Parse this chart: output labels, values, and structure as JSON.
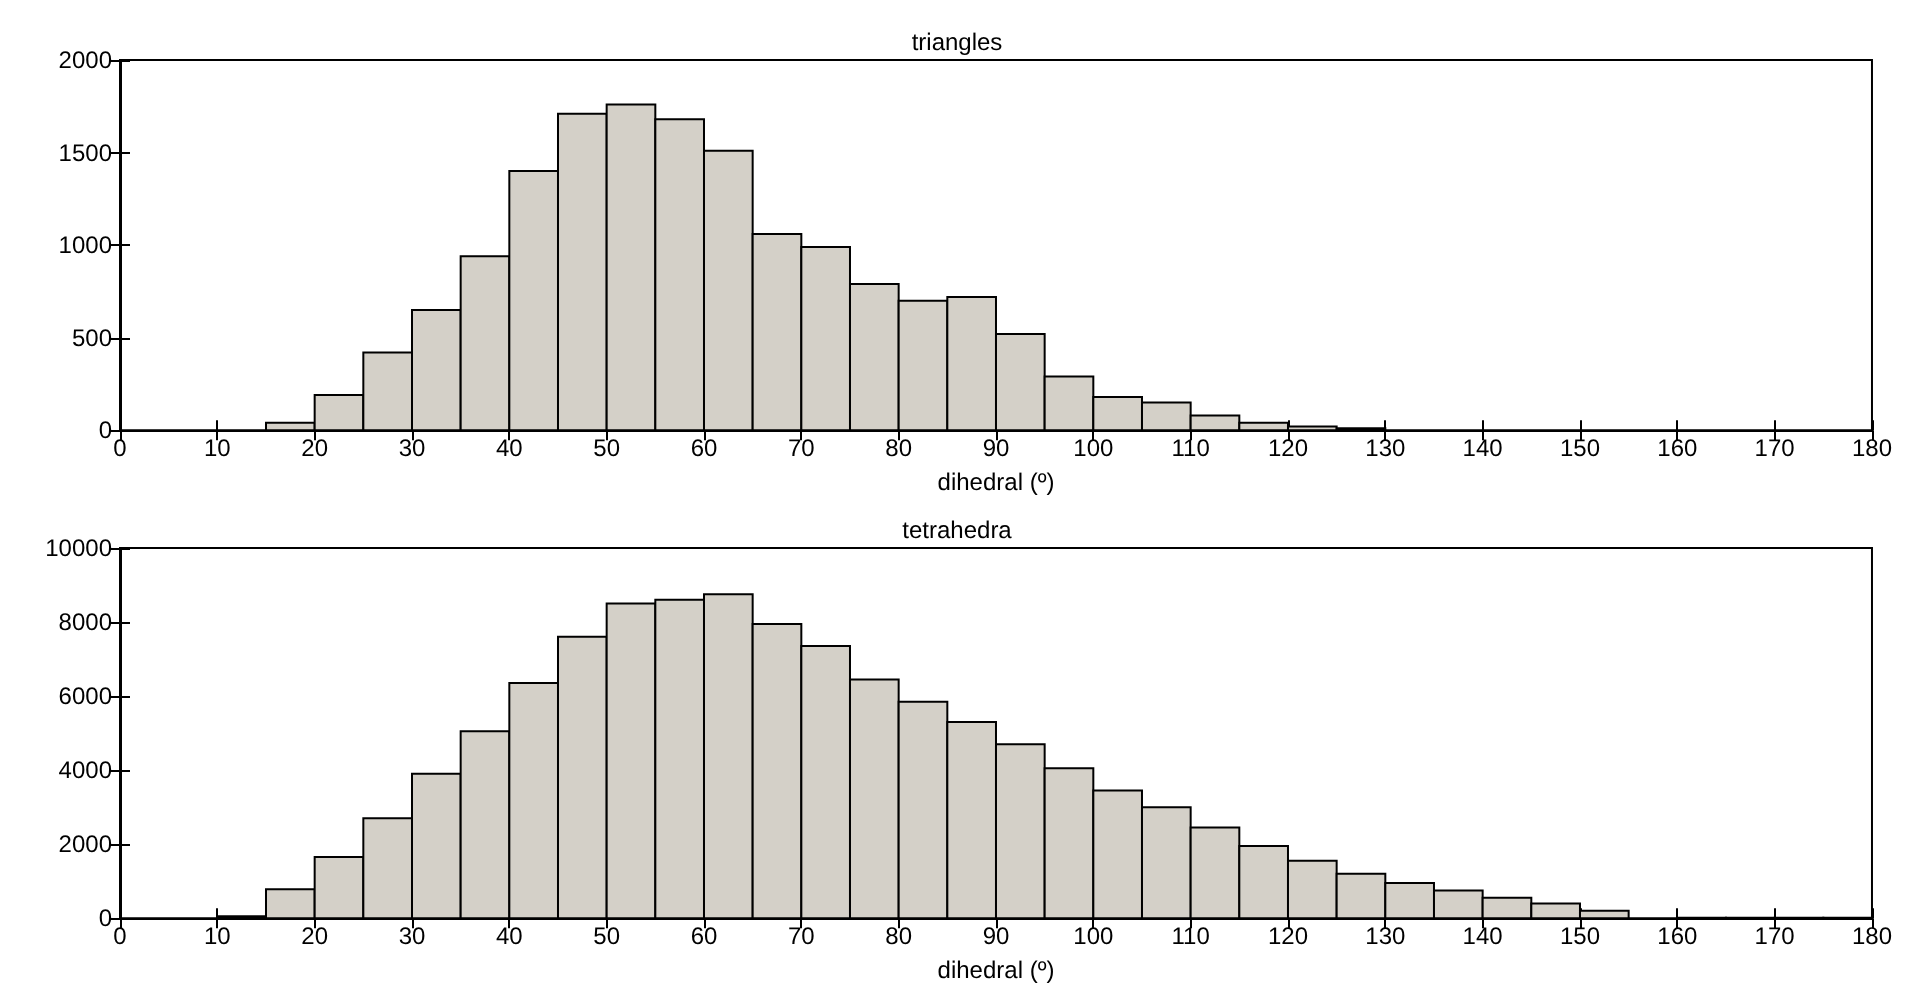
{
  "chart_data": [
    {
      "type": "histogram",
      "title": "triangles",
      "xlabel": "dihedral (º)",
      "bins": [
        0,
        5,
        10,
        15,
        20,
        25,
        30,
        35,
        40,
        45,
        50,
        55,
        60,
        65,
        70,
        75,
        80,
        85,
        90,
        95,
        100,
        105,
        110,
        115,
        120,
        125,
        130,
        135,
        140,
        145,
        150,
        155,
        160,
        165,
        170,
        175,
        180
      ],
      "values": [
        0,
        0,
        0,
        40,
        190,
        420,
        650,
        940,
        1400,
        1710,
        1760,
        1680,
        1510,
        1060,
        990,
        790,
        700,
        720,
        520,
        290,
        180,
        150,
        80,
        40,
        20,
        10,
        null,
        0,
        0,
        0,
        0,
        0,
        0,
        0,
        0,
        0
      ],
      "color": "#d4d0c8",
      "xlim": [
        0,
        180
      ],
      "xticks": [
        0,
        10,
        20,
        30,
        40,
        50,
        60,
        70,
        80,
        90,
        100,
        110,
        120,
        130,
        140,
        150,
        160,
        170,
        180
      ],
      "ylim": [
        0,
        2000
      ],
      "yticks": [
        0,
        500,
        1000,
        1500,
        2000
      ],
      "grid": false
    },
    {
      "type": "histogram",
      "title": "tetrahedra",
      "xlabel": "dihedral (º)",
      "bins": [
        0,
        5,
        10,
        15,
        20,
        25,
        30,
        35,
        40,
        45,
        50,
        55,
        60,
        65,
        70,
        75,
        80,
        85,
        90,
        95,
        100,
        105,
        110,
        115,
        120,
        125,
        130,
        135,
        140,
        145,
        150,
        155,
        160,
        165,
        170,
        175,
        180
      ],
      "values": [
        null,
        null,
        50,
        780,
        1650,
        2700,
        3900,
        5050,
        6350,
        7600,
        8500,
        8600,
        8750,
        7950,
        7350,
        6450,
        5850,
        5300,
        4700,
        4050,
        3450,
        3000,
        2450,
        1950,
        1550,
        1200,
        950,
        750,
        550,
        400,
        200,
        null,
        10,
        10,
        10,
        10
      ],
      "color": "#d4d0c8",
      "xlim": [
        0,
        180
      ],
      "xticks": [
        0,
        10,
        20,
        30,
        40,
        50,
        60,
        70,
        80,
        90,
        100,
        110,
        120,
        130,
        140,
        150,
        160,
        170,
        180
      ],
      "ylim": [
        0,
        10000
      ],
      "yticks": [
        0,
        2000,
        4000,
        6000,
        8000,
        10000
      ],
      "grid": false
    }
  ]
}
